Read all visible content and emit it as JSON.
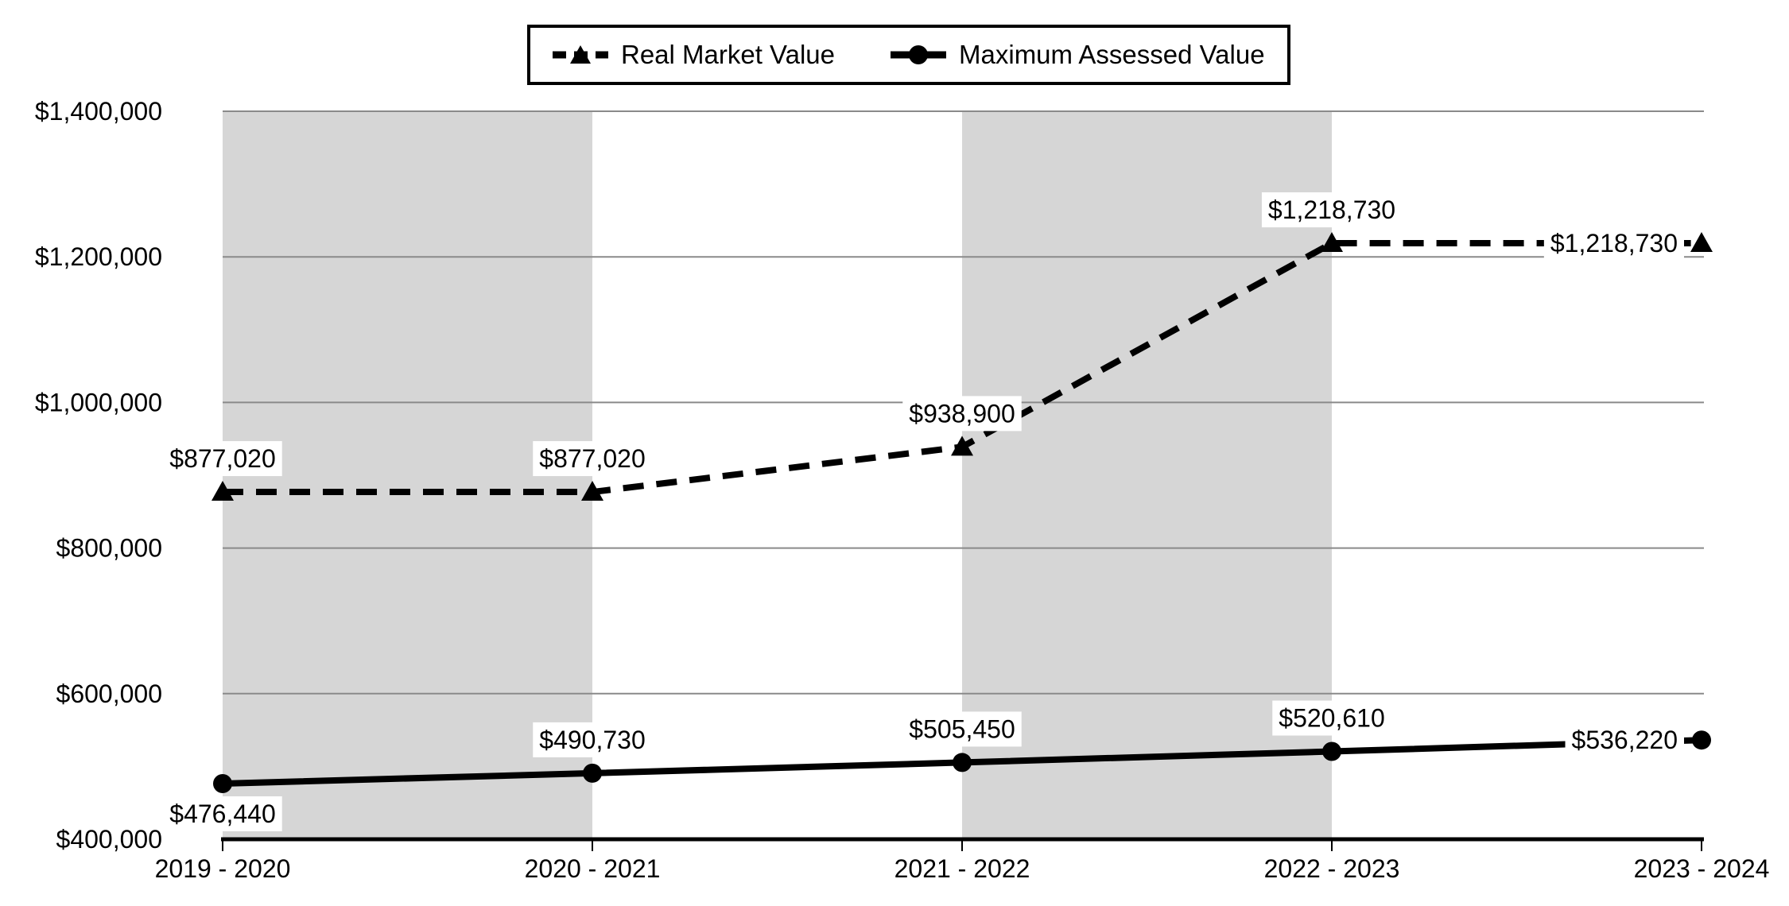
{
  "chart_data": {
    "type": "line",
    "title": "",
    "xlabel": "",
    "ylabel": "",
    "categories": [
      "2019 - 2020",
      "2020 - 2021",
      "2021 - 2022",
      "2022 - 2023",
      "2023 - 2024"
    ],
    "series": [
      {
        "name": "Real Market Value",
        "line_style": "dashed",
        "marker": "triangle",
        "values": [
          877020,
          877020,
          938900,
          1218730,
          1218730
        ],
        "data_labels": [
          "$877,020",
          "$877,020",
          "$938,900",
          "$1,218,730",
          "$1,218,730"
        ],
        "label_placements": [
          "above",
          "above",
          "above",
          "above",
          "left"
        ]
      },
      {
        "name": "Maximum Assessed Value",
        "line_style": "solid",
        "marker": "circle",
        "values": [
          476440,
          490730,
          505450,
          520610,
          536220
        ],
        "data_labels": [
          "$476,440",
          "$490,730",
          "$505,450",
          "$520,610",
          "$536,220"
        ],
        "label_placements": [
          "below",
          "above",
          "above",
          "above",
          "left"
        ]
      }
    ],
    "ylim": [
      400000,
      1400000
    ],
    "ytick_step": 200000,
    "ytick_labels": [
      "$400,000",
      "$600,000",
      "$800,000",
      "$1,000,000",
      "$1,200,000",
      "$1,400,000"
    ],
    "grid": "horizontal-only",
    "legend_position": "top-center",
    "shaded_column_intervals": [
      [
        0,
        1
      ],
      [
        2,
        3
      ]
    ]
  },
  "legend": {
    "items": [
      {
        "label": "Real Market Value",
        "sample": "dashed-line-triangle-marker"
      },
      {
        "label": "Maximum Assessed Value",
        "sample": "solid-line-circle-marker"
      }
    ]
  },
  "colors": {
    "series": "#000000",
    "gridline": "#8a8a8a",
    "axis": "#000000",
    "band": "#d6d6d6",
    "label_background": "#ffffff",
    "text": "#000000",
    "legend_border": "#000000",
    "background": "#ffffff"
  }
}
